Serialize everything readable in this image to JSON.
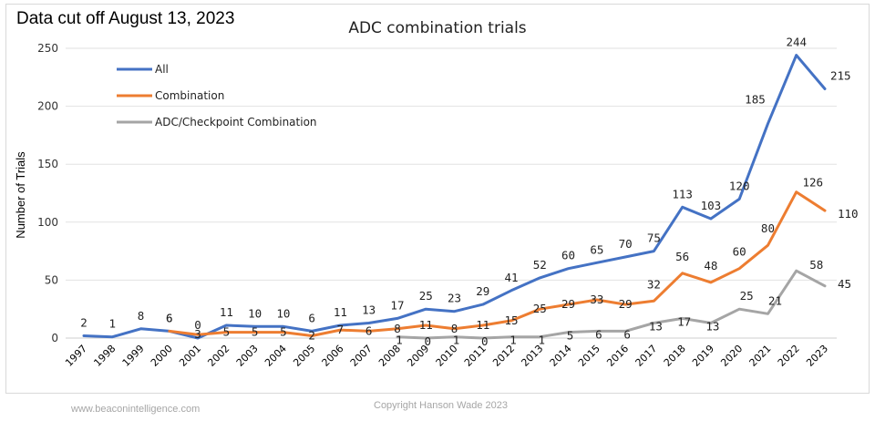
{
  "header": {
    "cutoff_note": "Data cut off August 13, 2023"
  },
  "footer": {
    "website": "www.beaconintelligence.com",
    "copyright": "Copyright Hanson Wade 2023"
  },
  "chart_data": {
    "type": "line",
    "title": "ADC combination trials",
    "xlabel": "",
    "ylabel": "Number of Trials",
    "ylim": [
      0,
      250
    ],
    "yticks": [
      0,
      50,
      100,
      150,
      200,
      250
    ],
    "grid": true,
    "legend_position": "top-left",
    "categories": [
      "1997",
      "1998",
      "1999",
      "2000",
      "2001",
      "2002",
      "2003",
      "2004",
      "2005",
      "2006",
      "2007",
      "2008",
      "2009",
      "2010",
      "2011",
      "2012",
      "2013",
      "2014",
      "2015",
      "2016",
      "2017",
      "2018",
      "2019",
      "2020",
      "2021",
      "2022",
      "2023"
    ],
    "series": [
      {
        "name": "All",
        "color": "#4472c4",
        "values": [
          2,
          1,
          8,
          6,
          0,
          11,
          10,
          10,
          6,
          11,
          13,
          17,
          25,
          23,
          29,
          41,
          52,
          60,
          65,
          70,
          75,
          113,
          103,
          120,
          185,
          244,
          215
        ]
      },
      {
        "name": "Combination",
        "color": "#ed7d31",
        "values": [
          null,
          null,
          null,
          6,
          3,
          5,
          5,
          5,
          2,
          7,
          6,
          8,
          11,
          8,
          11,
          15,
          25,
          29,
          33,
          29,
          32,
          56,
          48,
          60,
          80,
          126,
          110
        ]
      },
      {
        "name": "ADC/Checkpoint Combination",
        "color": "#a5a5a5",
        "values": [
          null,
          null,
          null,
          null,
          null,
          null,
          null,
          null,
          null,
          null,
          null,
          1,
          0,
          1,
          0,
          1,
          1,
          5,
          6,
          6,
          13,
          17,
          13,
          25,
          21,
          58,
          45
        ]
      }
    ]
  }
}
